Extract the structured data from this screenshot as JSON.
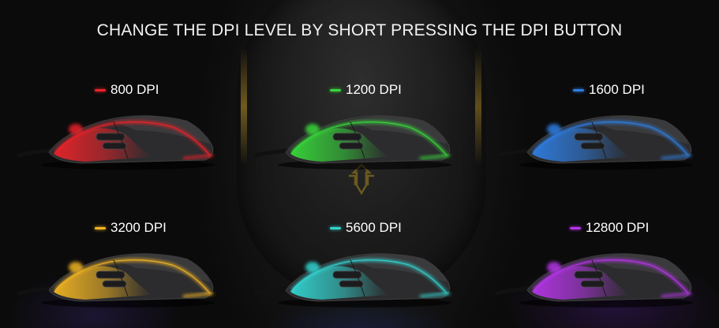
{
  "title": "CHANGE THE DPI LEVEL BY SHORT PRESSING THE DPI BUTTON",
  "background_logo_icon": "gamer-emblem-icon",
  "dpi_levels": [
    {
      "label": "800 DPI",
      "color": "#e8242a"
    },
    {
      "label": "1200 DPI",
      "color": "#37d63a"
    },
    {
      "label": "1600 DPI",
      "color": "#2f7de0"
    },
    {
      "label": "3200 DPI",
      "color": "#f0b323"
    },
    {
      "label": "5600 DPI",
      "color": "#33d4d0"
    },
    {
      "label": "12800 DPI",
      "color": "#b535e8"
    }
  ]
}
